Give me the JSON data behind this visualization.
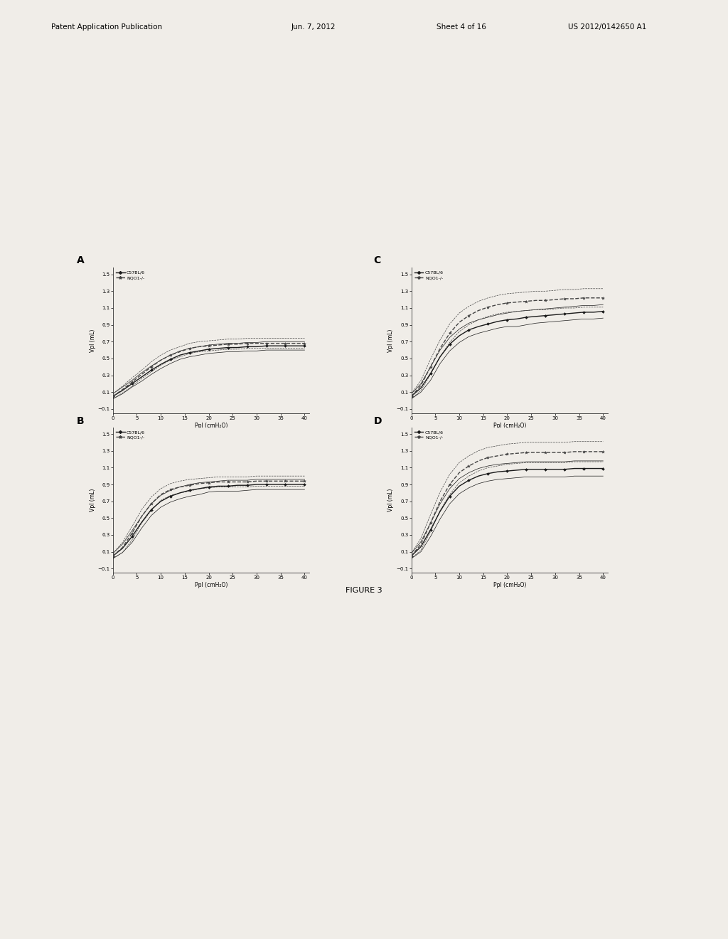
{
  "header_left": "Patent Application Publication",
  "header_date": "Jun. 7, 2012",
  "header_sheet": "Sheet 4 of 16",
  "header_right": "US 2012/0142650 A1",
  "figure_label": "FIGURE 3",
  "panel_labels": [
    "A",
    "B",
    "C",
    "D"
  ],
  "xlabel": "Ppl (cmH₂O)",
  "ylabel": "Vpl (mL)",
  "legend_entries": [
    "C57BL/6",
    "NQO1-/-"
  ],
  "x_ticks": [
    0,
    5,
    10,
    15,
    20,
    25,
    30,
    35,
    40
  ],
  "y_ticks": [
    -0.1,
    0.1,
    0.3,
    0.5,
    0.7,
    0.9,
    1.1,
    1.3,
    1.5
  ],
  "xlim": [
    0,
    41
  ],
  "ylim": [
    -0.15,
    1.58
  ],
  "background_color": "#f0ede8",
  "panel_A": {
    "x": [
      0,
      2,
      4,
      6,
      8,
      10,
      12,
      14,
      16,
      18,
      20,
      22,
      24,
      26,
      28,
      30,
      32,
      34,
      36,
      38,
      40
    ],
    "y_solid_mean": [
      0.05,
      0.12,
      0.2,
      0.28,
      0.36,
      0.43,
      0.49,
      0.54,
      0.57,
      0.59,
      0.61,
      0.62,
      0.63,
      0.63,
      0.64,
      0.64,
      0.65,
      0.65,
      0.65,
      0.65,
      0.65
    ],
    "y_solid_hi": [
      0.08,
      0.16,
      0.24,
      0.33,
      0.41,
      0.48,
      0.54,
      0.59,
      0.62,
      0.64,
      0.66,
      0.67,
      0.68,
      0.68,
      0.69,
      0.69,
      0.7,
      0.7,
      0.7,
      0.7,
      0.7
    ],
    "y_solid_lo": [
      0.02,
      0.08,
      0.16,
      0.23,
      0.31,
      0.38,
      0.44,
      0.49,
      0.52,
      0.54,
      0.56,
      0.57,
      0.58,
      0.58,
      0.59,
      0.59,
      0.6,
      0.6,
      0.6,
      0.6,
      0.6
    ],
    "y_dashed_mean": [
      0.05,
      0.13,
      0.22,
      0.31,
      0.4,
      0.48,
      0.54,
      0.58,
      0.62,
      0.64,
      0.65,
      0.66,
      0.67,
      0.67,
      0.68,
      0.68,
      0.68,
      0.68,
      0.68,
      0.68,
      0.68
    ],
    "y_dashed_hi": [
      0.08,
      0.17,
      0.27,
      0.36,
      0.46,
      0.54,
      0.6,
      0.64,
      0.68,
      0.7,
      0.71,
      0.72,
      0.73,
      0.73,
      0.74,
      0.74,
      0.74,
      0.74,
      0.74,
      0.74,
      0.74
    ],
    "y_dashed_lo": [
      0.02,
      0.09,
      0.17,
      0.26,
      0.34,
      0.42,
      0.48,
      0.52,
      0.56,
      0.58,
      0.59,
      0.6,
      0.61,
      0.61,
      0.62,
      0.62,
      0.62,
      0.62,
      0.62,
      0.62,
      0.62
    ]
  },
  "panel_B": {
    "x": [
      0,
      2,
      4,
      6,
      8,
      10,
      12,
      14,
      16,
      18,
      20,
      22,
      24,
      26,
      28,
      30,
      32,
      34,
      36,
      38,
      40
    ],
    "y_solid_mean": [
      0.05,
      0.14,
      0.28,
      0.45,
      0.6,
      0.7,
      0.76,
      0.8,
      0.83,
      0.85,
      0.87,
      0.88,
      0.88,
      0.89,
      0.89,
      0.9,
      0.9,
      0.9,
      0.9,
      0.9,
      0.9
    ],
    "y_solid_hi": [
      0.08,
      0.19,
      0.35,
      0.52,
      0.67,
      0.77,
      0.83,
      0.87,
      0.9,
      0.92,
      0.93,
      0.94,
      0.95,
      0.95,
      0.95,
      0.96,
      0.96,
      0.96,
      0.96,
      0.96,
      0.96
    ],
    "y_solid_lo": [
      0.02,
      0.09,
      0.21,
      0.38,
      0.53,
      0.63,
      0.69,
      0.73,
      0.76,
      0.78,
      0.81,
      0.82,
      0.82,
      0.82,
      0.83,
      0.84,
      0.84,
      0.84,
      0.84,
      0.84,
      0.84
    ],
    "y_dashed_mean": [
      0.05,
      0.15,
      0.32,
      0.52,
      0.67,
      0.78,
      0.84,
      0.87,
      0.89,
      0.91,
      0.92,
      0.93,
      0.93,
      0.93,
      0.93,
      0.94,
      0.94,
      0.94,
      0.94,
      0.94,
      0.94
    ],
    "y_dashed_hi": [
      0.08,
      0.21,
      0.4,
      0.6,
      0.75,
      0.85,
      0.91,
      0.94,
      0.96,
      0.97,
      0.98,
      0.99,
      0.99,
      0.99,
      0.99,
      1.0,
      1.0,
      1.0,
      1.0,
      1.0,
      1.0
    ],
    "y_dashed_lo": [
      0.02,
      0.09,
      0.24,
      0.44,
      0.59,
      0.71,
      0.77,
      0.8,
      0.82,
      0.85,
      0.86,
      0.87,
      0.87,
      0.87,
      0.87,
      0.88,
      0.88,
      0.88,
      0.88,
      0.88,
      0.88
    ]
  },
  "panel_C": {
    "x": [
      0,
      2,
      4,
      6,
      8,
      10,
      12,
      14,
      16,
      18,
      20,
      22,
      24,
      26,
      28,
      30,
      32,
      34,
      36,
      38,
      40
    ],
    "y_solid_mean": [
      0.05,
      0.15,
      0.32,
      0.52,
      0.67,
      0.77,
      0.84,
      0.88,
      0.91,
      0.94,
      0.96,
      0.97,
      0.99,
      1.0,
      1.01,
      1.02,
      1.03,
      1.04,
      1.05,
      1.05,
      1.06
    ],
    "y_solid_hi": [
      0.08,
      0.2,
      0.4,
      0.6,
      0.75,
      0.85,
      0.92,
      0.96,
      0.99,
      1.02,
      1.04,
      1.06,
      1.07,
      1.08,
      1.09,
      1.1,
      1.11,
      1.12,
      1.13,
      1.13,
      1.14
    ],
    "y_solid_lo": [
      0.02,
      0.1,
      0.24,
      0.44,
      0.59,
      0.69,
      0.76,
      0.8,
      0.83,
      0.86,
      0.88,
      0.88,
      0.9,
      0.92,
      0.93,
      0.94,
      0.95,
      0.96,
      0.97,
      0.97,
      0.98
    ],
    "y_dashed_mean": [
      0.05,
      0.18,
      0.4,
      0.62,
      0.8,
      0.93,
      1.01,
      1.07,
      1.11,
      1.14,
      1.16,
      1.17,
      1.18,
      1.19,
      1.19,
      1.2,
      1.21,
      1.21,
      1.22,
      1.22,
      1.22
    ],
    "y_dashed_hi": [
      0.08,
      0.24,
      0.49,
      0.72,
      0.91,
      1.04,
      1.12,
      1.18,
      1.22,
      1.25,
      1.27,
      1.28,
      1.29,
      1.3,
      1.3,
      1.31,
      1.32,
      1.32,
      1.33,
      1.33,
      1.33
    ],
    "y_dashed_lo": [
      0.02,
      0.12,
      0.31,
      0.52,
      0.69,
      0.82,
      0.9,
      0.96,
      1.0,
      1.03,
      1.05,
      1.06,
      1.07,
      1.08,
      1.08,
      1.09,
      1.1,
      1.1,
      1.11,
      1.11,
      1.11
    ]
  },
  "panel_D": {
    "x": [
      0,
      2,
      4,
      6,
      8,
      10,
      12,
      14,
      16,
      18,
      20,
      22,
      24,
      26,
      28,
      30,
      32,
      34,
      36,
      38,
      40
    ],
    "y_solid_mean": [
      0.05,
      0.16,
      0.36,
      0.58,
      0.76,
      0.88,
      0.95,
      1.0,
      1.03,
      1.05,
      1.06,
      1.07,
      1.08,
      1.08,
      1.08,
      1.08,
      1.08,
      1.09,
      1.09,
      1.09,
      1.09
    ],
    "y_solid_hi": [
      0.08,
      0.22,
      0.44,
      0.67,
      0.85,
      0.97,
      1.04,
      1.09,
      1.12,
      1.14,
      1.15,
      1.16,
      1.17,
      1.17,
      1.17,
      1.17,
      1.17,
      1.18,
      1.18,
      1.18,
      1.18
    ],
    "y_solid_lo": [
      0.02,
      0.1,
      0.28,
      0.49,
      0.67,
      0.79,
      0.86,
      0.91,
      0.94,
      0.96,
      0.97,
      0.98,
      0.99,
      0.99,
      0.99,
      0.99,
      0.99,
      1.0,
      1.0,
      1.0,
      1.0
    ],
    "y_dashed_mean": [
      0.05,
      0.19,
      0.44,
      0.7,
      0.9,
      1.04,
      1.12,
      1.18,
      1.22,
      1.24,
      1.26,
      1.27,
      1.28,
      1.28,
      1.28,
      1.28,
      1.28,
      1.29,
      1.29,
      1.29,
      1.29
    ],
    "y_dashed_hi": [
      0.08,
      0.26,
      0.54,
      0.81,
      1.02,
      1.16,
      1.24,
      1.3,
      1.34,
      1.36,
      1.38,
      1.39,
      1.4,
      1.4,
      1.4,
      1.4,
      1.4,
      1.41,
      1.41,
      1.41,
      1.41
    ],
    "y_dashed_lo": [
      0.02,
      0.12,
      0.34,
      0.59,
      0.78,
      0.92,
      1.0,
      1.06,
      1.1,
      1.12,
      1.14,
      1.15,
      1.16,
      1.16,
      1.16,
      1.16,
      1.16,
      1.17,
      1.17,
      1.17,
      1.17
    ]
  }
}
